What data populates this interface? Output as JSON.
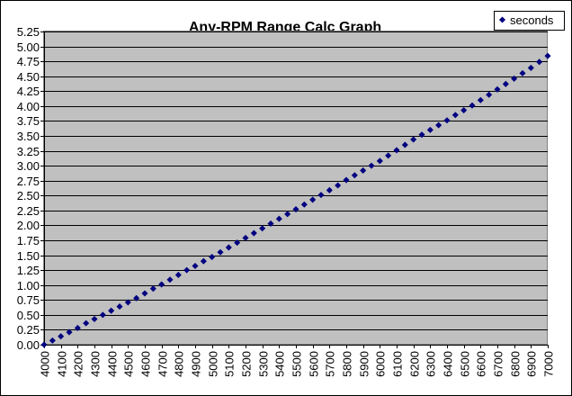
{
  "chart_data": {
    "type": "scatter",
    "title": "Any-RPM Range Calc Graph",
    "xlabel": "",
    "ylabel": "",
    "xlim": [
      4000,
      7000
    ],
    "ylim": [
      0,
      5.25
    ],
    "x_ticks": [
      "4000",
      "4100",
      "4200",
      "4300",
      "4400",
      "4500",
      "4600",
      "4700",
      "4800",
      "4900",
      "5000",
      "5100",
      "5200",
      "5300",
      "5400",
      "5500",
      "5600",
      "5700",
      "5800",
      "5900",
      "6000",
      "6100",
      "6200",
      "6300",
      "6400",
      "6500",
      "6600",
      "6700",
      "6800",
      "6900",
      "7000"
    ],
    "y_ticks": [
      "0.00",
      "0.25",
      "0.50",
      "0.75",
      "1.00",
      "1.25",
      "1.50",
      "1.75",
      "2.00",
      "2.25",
      "2.50",
      "2.75",
      "3.00",
      "3.25",
      "3.50",
      "3.75",
      "4.00",
      "4.25",
      "4.50",
      "4.75",
      "5.00",
      "5.25"
    ],
    "grid": "horizontal",
    "legend": "top-right",
    "plot_background": "#C0C0C0",
    "marker_color": "#000080",
    "series": [
      {
        "name": "seconds",
        "x": [
          4000,
          4050,
          4100,
          4150,
          4200,
          4250,
          4300,
          4350,
          4400,
          4450,
          4500,
          4550,
          4600,
          4650,
          4700,
          4750,
          4800,
          4850,
          4900,
          4950,
          5000,
          5050,
          5100,
          5150,
          5200,
          5250,
          5300,
          5350,
          5400,
          5450,
          5500,
          5550,
          5600,
          5650,
          5700,
          5750,
          5800,
          5850,
          5900,
          5950,
          6000,
          6050,
          6100,
          6150,
          6200,
          6250,
          6300,
          6350,
          6400,
          6450,
          6500,
          6550,
          6600,
          6650,
          6700,
          6750,
          6800,
          6850,
          6900,
          6950,
          7000
        ],
        "y": [
          0.0,
          0.07,
          0.14,
          0.21,
          0.28,
          0.36,
          0.43,
          0.5,
          0.57,
          0.64,
          0.71,
          0.78,
          0.86,
          0.94,
          1.01,
          1.09,
          1.17,
          1.25,
          1.32,
          1.4,
          1.47,
          1.55,
          1.63,
          1.71,
          1.79,
          1.87,
          1.95,
          2.03,
          2.11,
          2.19,
          2.27,
          2.35,
          2.43,
          2.51,
          2.59,
          2.67,
          2.76,
          2.84,
          2.92,
          3.0,
          3.08,
          3.17,
          3.26,
          3.35,
          3.44,
          3.52,
          3.6,
          3.68,
          3.76,
          3.85,
          3.93,
          4.01,
          4.1,
          4.19,
          4.28,
          4.37,
          4.46,
          4.55,
          4.64,
          4.74,
          4.84
        ]
      }
    ]
  }
}
